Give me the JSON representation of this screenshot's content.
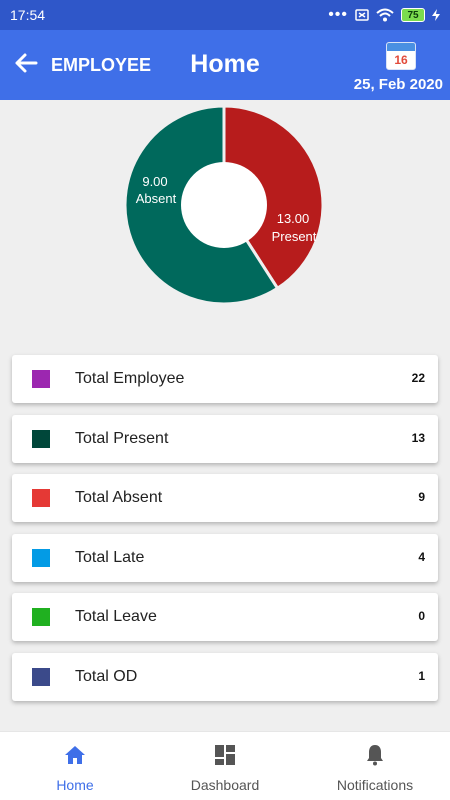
{
  "status": {
    "time": "17:54",
    "dots": "•••",
    "battery": "75"
  },
  "header": {
    "back_icon": "arrow-left-icon",
    "app_label": "EMPLOYEE",
    "title": "Home",
    "calendar_day": "16",
    "date": "25, Feb 2020"
  },
  "chart_data": {
    "type": "pie",
    "labels": [
      "Absent",
      "Present"
    ],
    "values": [
      9.0,
      13.0
    ],
    "colors": [
      "#b71c1c",
      "#00695c"
    ],
    "label_values": [
      "9.00",
      "13.00"
    ]
  },
  "cards": [
    {
      "label": "Total Employee",
      "value": "22",
      "color": "#9c27b0"
    },
    {
      "label": "Total Present",
      "value": "13",
      "color": "#00473a"
    },
    {
      "label": "Total Absent",
      "value": "9",
      "color": "#e53935"
    },
    {
      "label": "Total Late",
      "value": "4",
      "color": "#039be5"
    },
    {
      "label": "Total Leave",
      "value": "0",
      "color": "#20b020"
    },
    {
      "label": "Total OD",
      "value": "1",
      "color": "#3b4a8a"
    }
  ],
  "nav": {
    "home": {
      "label": "Home",
      "icon": "home-icon"
    },
    "dashboard": {
      "label": "Dashboard",
      "icon": "dashboard-icon"
    },
    "notifications": {
      "label": "Notifications",
      "icon": "bell-icon"
    }
  }
}
